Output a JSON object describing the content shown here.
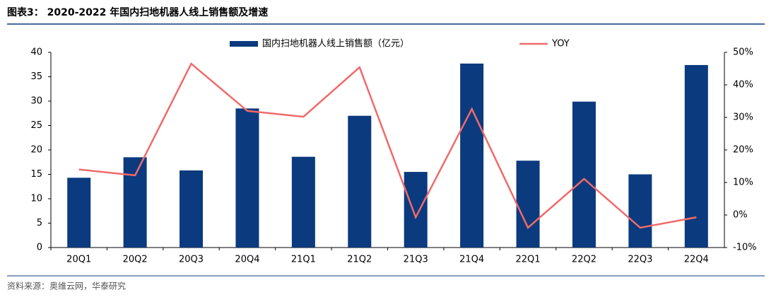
{
  "header": {
    "title": "图表3： 2020-2022 年国内扫地机器人线上销售额及增速"
  },
  "chart_data": {
    "type": "bar",
    "categories": [
      "20Q1",
      "20Q2",
      "20Q3",
      "20Q4",
      "21Q1",
      "21Q2",
      "21Q3",
      "21Q4",
      "22Q1",
      "22Q2",
      "22Q3",
      "22Q4"
    ],
    "series": [
      {
        "name": "国内扫地机器人线上销售额（亿元）",
        "type": "bar",
        "color": "#0b3a7e",
        "values": [
          14.3,
          18.5,
          15.8,
          28.5,
          18.6,
          27,
          15.5,
          37.7,
          17.8,
          29.9,
          15,
          37.4
        ]
      },
      {
        "name": "YOY",
        "type": "line",
        "axis": "y2",
        "color": "#f06a6a",
        "values": [
          14,
          12.2,
          46.5,
          32,
          30.2,
          45.4,
          -0.7,
          32.6,
          -3.9,
          11.1,
          -3.9,
          -0.7
        ]
      }
    ],
    "ylim": [
      0,
      40
    ],
    "yticks": [
      0,
      5,
      10,
      15,
      20,
      25,
      30,
      35,
      40
    ],
    "y2lim": [
      -10,
      50
    ],
    "y2ticks": [
      {
        "value": -10,
        "label": "-10%"
      },
      {
        "value": 0,
        "label": "0%"
      },
      {
        "value": 10,
        "label": "10%"
      },
      {
        "value": 20,
        "label": "20%"
      },
      {
        "value": 30,
        "label": "30%"
      },
      {
        "value": 40,
        "label": "40%"
      },
      {
        "value": 50,
        "label": "50%"
      }
    ],
    "grid": false,
    "legend": "top"
  },
  "footer": {
    "source": "资料来源：奥维云网，华泰研究"
  }
}
